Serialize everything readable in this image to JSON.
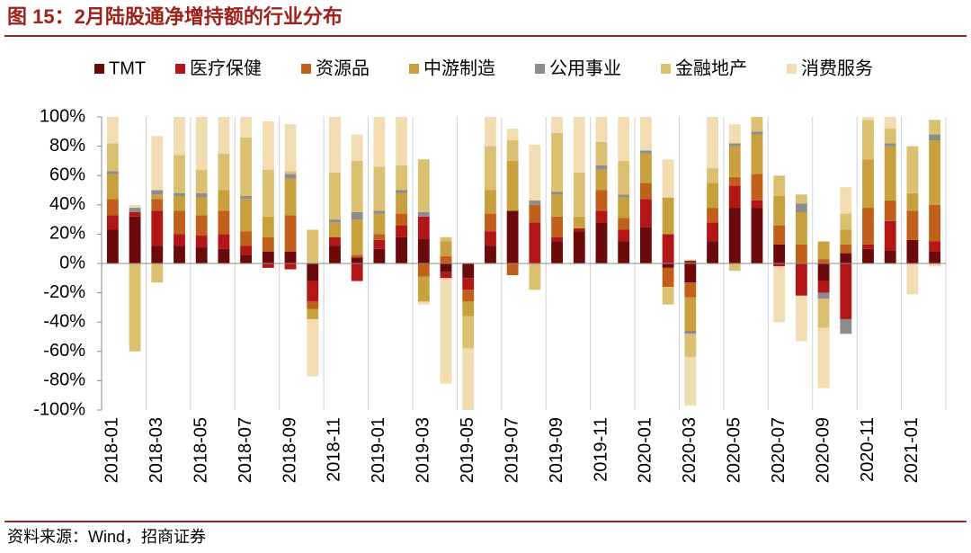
{
  "chart_data": {
    "type": "stacked_bar",
    "title": "图 15：2月陆股通净增持额的行业分布",
    "source": "资料来源：Wind，招商证券",
    "categories": [
      "2018-01",
      null,
      "2018-03",
      null,
      "2018-05",
      null,
      "2018-07",
      null,
      "2018-09",
      null,
      "2018-11",
      null,
      "2019-01",
      null,
      "2019-03",
      null,
      "2019-05",
      null,
      "2019-07",
      null,
      "2019-09",
      null,
      "2019-11",
      null,
      "2020-01",
      null,
      "2020-03",
      null,
      "2020-05",
      null,
      "2020-07",
      null,
      "2020-09",
      null,
      "2020-11",
      null,
      "2021-01",
      null
    ],
    "series": [
      {
        "name": "TMT",
        "color": "#6b0a0a",
        "values": [
          23,
          32,
          12,
          12,
          11,
          10,
          6,
          8,
          8,
          -12,
          12,
          4,
          10,
          18,
          17,
          -6,
          -10,
          12,
          36,
          0,
          15,
          22,
          28,
          15,
          25,
          -3,
          -13,
          15,
          38,
          38,
          13,
          0,
          -12,
          7,
          10,
          9,
          16,
          8
        ]
      },
      {
        "name": "医疗保健",
        "color": "#b31616",
        "values": [
          10,
          3,
          24,
          8,
          8,
          10,
          6,
          -3,
          -4,
          -14,
          6,
          -12,
          6,
          8,
          15,
          -4,
          -8,
          10,
          0,
          28,
          3,
          2,
          8,
          8,
          19,
          20,
          2,
          13,
          15,
          5,
          -2,
          -22,
          -8,
          -38,
          3,
          20,
          0,
          7
        ]
      },
      {
        "name": "资源品",
        "color": "#c0601c",
        "values": [
          11,
          0,
          8,
          16,
          14,
          16,
          10,
          10,
          25,
          -5,
          0,
          2,
          4,
          8,
          -9,
          5,
          -8,
          12,
          -8,
          12,
          14,
          0,
          14,
          8,
          11,
          -13,
          -10,
          10,
          6,
          18,
          13,
          13,
          3,
          6,
          25,
          14,
          20,
          25
        ]
      },
      {
        "name": "中游制造",
        "color": "#c9a03e",
        "values": [
          17,
          0,
          3,
          10,
          12,
          14,
          22,
          14,
          25,
          -7,
          10,
          24,
          14,
          14,
          -17,
          10,
          -10,
          16,
          34,
          0,
          15,
          8,
          14,
          14,
          20,
          25,
          -23,
          17,
          21,
          27,
          20,
          22,
          12,
          10,
          33,
          37,
          12,
          44
        ]
      },
      {
        "name": "公用事业",
        "color": "#8c8c8c",
        "values": [
          2,
          3,
          3,
          2,
          3,
          0,
          2,
          0,
          3,
          0,
          2,
          5,
          2,
          2,
          3,
          0,
          0,
          0,
          0,
          3,
          2,
          0,
          3,
          2,
          2,
          0,
          -2,
          0,
          2,
          2,
          0,
          6,
          -4,
          -10,
          0,
          2,
          0,
          4
        ]
      },
      {
        "name": "金融地产",
        "color": "#dcc071",
        "values": [
          19,
          -60,
          -13,
          26,
          16,
          25,
          40,
          32,
          2,
          23,
          32,
          35,
          30,
          17,
          36,
          3,
          -22,
          30,
          14,
          -18,
          40,
          30,
          16,
          23,
          0,
          -12,
          -16,
          10,
          -5,
          10,
          14,
          6,
          -20,
          11,
          27,
          10,
          32,
          10
        ]
      },
      {
        "name": "消费服务",
        "color": "#f1ddb1",
        "values": [
          18,
          2,
          37,
          26,
          36,
          25,
          14,
          33,
          32,
          -39,
          38,
          18,
          34,
          33,
          -2,
          -72,
          -42,
          20,
          8,
          38,
          11,
          38,
          17,
          30,
          23,
          26,
          -33,
          35,
          13,
          0,
          -38,
          -31,
          -41,
          18,
          2,
          8,
          -21,
          -2
        ]
      }
    ],
    "ylim": [
      -100,
      100
    ],
    "yticks": [
      {
        "value": 100,
        "label": "100%"
      },
      {
        "value": 80,
        "label": "80%"
      },
      {
        "value": 60,
        "label": "60%"
      },
      {
        "value": 40,
        "label": "40%"
      },
      {
        "value": 20,
        "label": "20%"
      },
      {
        "value": 0,
        "label": "0%"
      },
      {
        "value": -20,
        "label": "-20%"
      },
      {
        "value": -40,
        "label": "-40%"
      },
      {
        "value": -60,
        "label": "-60%"
      },
      {
        "value": -80,
        "label": "-80%"
      },
      {
        "value": -100,
        "label": "-100%"
      }
    ],
    "legend": "top"
  }
}
